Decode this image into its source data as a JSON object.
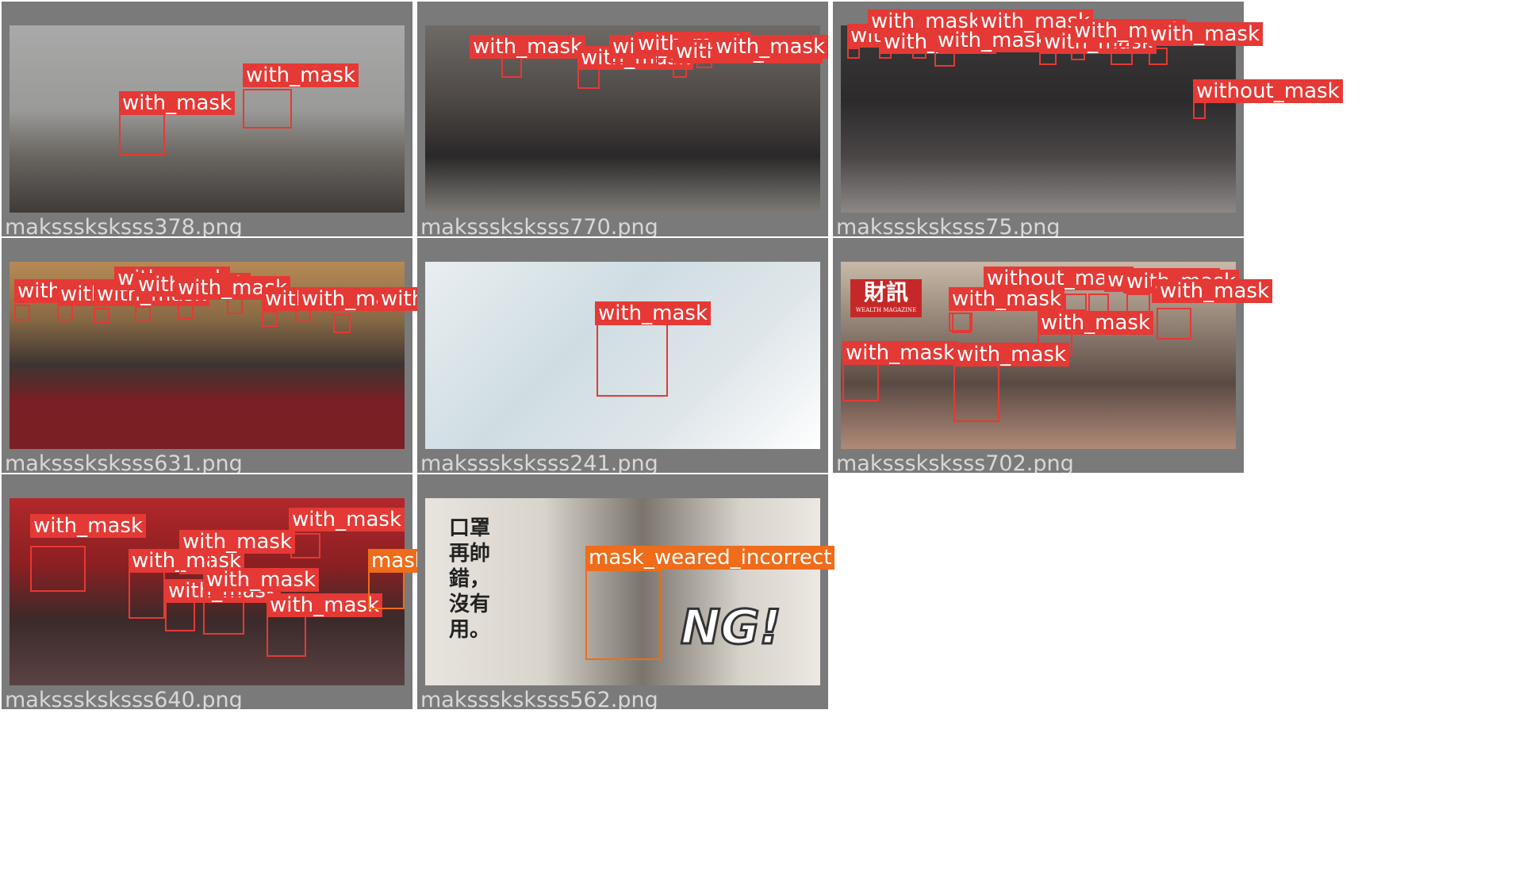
{
  "colors": {
    "with_mask": "#e53935",
    "mask_weared_incorrect": "#ef6c1a",
    "tile_border": "#7a7a7a",
    "caption": "#d8d8d8"
  },
  "tiles": [
    {
      "filename": "maksssksksss378.png",
      "photo": "linear-gradient(180deg,#a9a9a9 0%,#9a9a98 45%,#6a6560 70%,#3e3b39 100%)",
      "detections": [
        {
          "label": "with_mask",
          "cls": "with_mask"
        },
        {
          "label": "with_mask",
          "cls": "with_mask"
        }
      ]
    },
    {
      "filename": "maksssksksss770.png",
      "photo": "linear-gradient(180deg,#6e6a66 0%,#4d4845 40%,#2a2828 70%,#7d7a76 100%)",
      "detections": [
        {
          "label": "with_mask",
          "cls": "with_mask"
        },
        {
          "label": "with_mask",
          "cls": "with_mask"
        },
        {
          "label": "with_mask",
          "cls": "with_mask"
        },
        {
          "label": "with_mask",
          "cls": "with_mask"
        },
        {
          "label": "without_mask",
          "cls": "with_mask"
        },
        {
          "label": "with_mask",
          "cls": "with_mask"
        }
      ]
    },
    {
      "filename": "maksssksksss75.png",
      "photo": "linear-gradient(180deg,#3a3838 0%,#2c2a2b 40%,#4a4646 70%,#8c8886 100%)",
      "detections": [
        {
          "label": "with_mask",
          "cls": "with_mask"
        },
        {
          "label": "with_mask",
          "cls": "with_mask"
        },
        {
          "label": "with_mask",
          "cls": "with_mask"
        },
        {
          "label": "with_mask",
          "cls": "with_mask"
        },
        {
          "label": "with_mask",
          "cls": "with_mask"
        },
        {
          "label": "with_mask",
          "cls": "with_mask"
        },
        {
          "label": "with_mask",
          "cls": "with_mask"
        },
        {
          "label": "with_mask",
          "cls": "with_mask"
        },
        {
          "label": "without_mask",
          "cls": "with_mask"
        }
      ]
    },
    {
      "filename": "maksssksksss631.png",
      "photo": "linear-gradient(180deg,#b68a55 0%,#8a6a45 30%,#3c3532 55%,#7a1f24 75%,#7a1f24 100%)",
      "detections": [
        {
          "label": "with_mask",
          "cls": "with_mask"
        },
        {
          "label": "with_mask",
          "cls": "with_mask"
        },
        {
          "label": "with_mask",
          "cls": "with_mask"
        },
        {
          "label": "with_mask",
          "cls": "with_mask"
        },
        {
          "label": "with_mask",
          "cls": "with_mask"
        },
        {
          "label": "with_mask",
          "cls": "with_mask"
        },
        {
          "label": "with_mask",
          "cls": "with_mask"
        },
        {
          "label": "with_mask",
          "cls": "with_mask"
        },
        {
          "label": "with_mask",
          "cls": "with_mask"
        }
      ]
    },
    {
      "filename": "maksssksksss241.png",
      "photo": "linear-gradient(135deg,#e9eef1 0%,#cfdde2 40%,#dfe6ea 70%,#ffffff 100%)",
      "detections": [
        {
          "label": "with_mask",
          "cls": "with_mask"
        }
      ]
    },
    {
      "filename": "maksssksksss702.png",
      "photo": "linear-gradient(180deg,#c9b9a8 0%,#8f7f72 35%,#5a4a44 65%,#b08a78 100%)",
      "logo_main": "財訊",
      "logo_sub": "WEALTH MAGAZINE",
      "detections": [
        {
          "label": "without_mask",
          "cls": "with_mask"
        },
        {
          "label": "with_mask",
          "cls": "with_mask"
        },
        {
          "label": "with_mask",
          "cls": "with_mask"
        },
        {
          "label": "with_mask",
          "cls": "with_mask"
        },
        {
          "label": "with_mask",
          "cls": "with_mask"
        },
        {
          "label": "with_mask",
          "cls": "with_mask"
        },
        {
          "label": "with_mask",
          "cls": "with_mask"
        },
        {
          "label": "with_mask",
          "cls": "with_mask"
        },
        {
          "label": "with_mask",
          "cls": "with_mask"
        }
      ]
    },
    {
      "filename": "maksssksksss640.png",
      "photo": "linear-gradient(180deg,#b1282b 0%,#8c1f22 35%,#3b2a2a 65%,#5a4242 100%)",
      "detections": [
        {
          "label": "with_mask",
          "cls": "with_mask"
        },
        {
          "label": "with_mask",
          "cls": "with_mask"
        },
        {
          "label": "with_mask",
          "cls": "with_mask"
        },
        {
          "label": "with_mask",
          "cls": "with_mask"
        },
        {
          "label": "with_mask",
          "cls": "with_mask"
        },
        {
          "label": "with_mask",
          "cls": "with_mask"
        },
        {
          "label": "with_mask",
          "cls": "with_mask"
        },
        {
          "label": "mask_weared_incorrect",
          "cls": "mask_weared_incorrect"
        }
      ]
    },
    {
      "filename": "maksssksksss562.png",
      "photo": "linear-gradient(90deg,#e8e4de 0%,#d9d4cc 30%,#7a746c 55%,#d7d2ca 80%,#ece8e2 100%)",
      "side_text": "口罩\n再帥\n錯，\n沒有\n用。",
      "ng_text": "NG!",
      "detections": [
        {
          "label": "mask_weared_incorrect",
          "cls": "mask_weared_incorrect"
        }
      ]
    }
  ]
}
